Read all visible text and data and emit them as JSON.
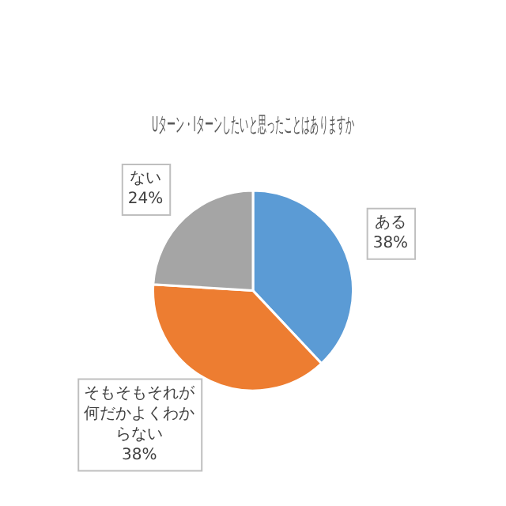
{
  "chart_data": {
    "type": "pie",
    "title": "Uターン・Iターンしたいと思ったことはありますか",
    "categories": [
      "ある",
      "そもそもそれが何だかよくわからない",
      "ない"
    ],
    "values": [
      38,
      38,
      24
    ],
    "value_labels": [
      "38%",
      "38%",
      "24%"
    ],
    "colors": [
      "#5b9bd5",
      "#ed7d31",
      "#a5a5a5"
    ],
    "legend": false
  }
}
